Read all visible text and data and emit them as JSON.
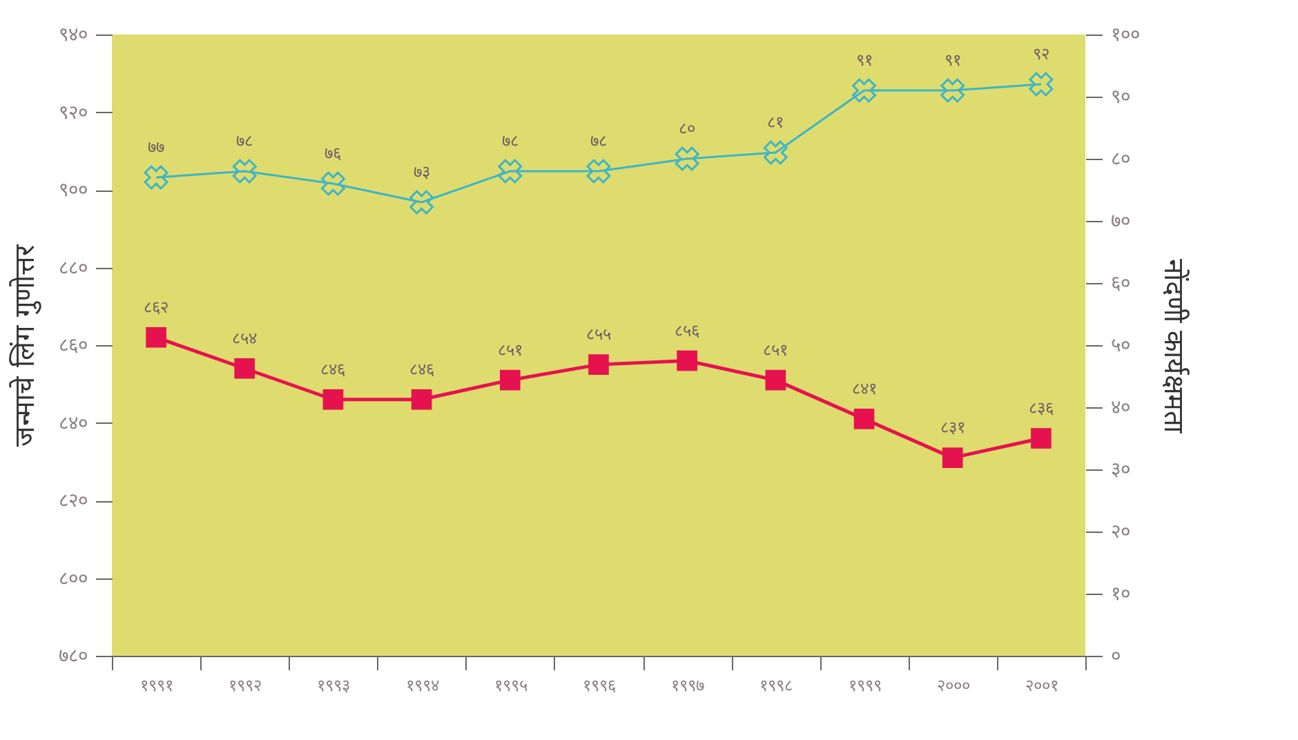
{
  "chart_data": {
    "type": "line",
    "ylabel": "जन्माचे लिंग गुणोत्तर",
    "y2label": "नोंदणी कार्यक्षमता",
    "categories": [
      "१९९१",
      "१९९२",
      "१९९३",
      "१९९४",
      "१९९५",
      "१९९६",
      "१९९७",
      "१९९८",
      "१९९९",
      "२०००",
      "२००१"
    ],
    "series": [
      {
        "color": "#e5124f",
        "marker": "square",
        "values": [
          862,
          854,
          846,
          846,
          851,
          855,
          856,
          851,
          841,
          831,
          836
        ],
        "value_labels": [
          "८६२",
          "८५४",
          "८४६",
          "८४६",
          "८५१",
          "८५५",
          "८५६",
          "८५१",
          "८४१",
          "८३१",
          "८३६"
        ]
      },
      {
        "color": "#3db5c6",
        "marker": "cross",
        "axis": "y2",
        "values": [
          77,
          78,
          76,
          73,
          78,
          78,
          80,
          81,
          91,
          91,
          92
        ],
        "value_labels": [
          "७७",
          "७८",
          "७६",
          "७३",
          "७८",
          "७८",
          "८०",
          "८१",
          "९१",
          "९१",
          "९२"
        ]
      }
    ],
    "ylim": [
      780,
      940
    ],
    "yticks": [
      {
        "value": 780,
        "label": "७८०"
      },
      {
        "value": 800,
        "label": "८००"
      },
      {
        "value": 820,
        "label": "८२०"
      },
      {
        "value": 840,
        "label": "८४०"
      },
      {
        "value": 860,
        "label": "८६०"
      },
      {
        "value": 880,
        "label": "८८०"
      },
      {
        "value": 900,
        "label": "९००"
      },
      {
        "value": 920,
        "label": "९२०"
      },
      {
        "value": 940,
        "label": "९४०"
      }
    ],
    "y2lim": [
      0,
      100
    ],
    "y2ticks": [
      {
        "value": 0,
        "label": "०"
      },
      {
        "value": 10,
        "label": "१०"
      },
      {
        "value": 20,
        "label": "२०"
      },
      {
        "value": 30,
        "label": "३०"
      },
      {
        "value": 40,
        "label": "४०"
      },
      {
        "value": 50,
        "label": "५०"
      },
      {
        "value": 60,
        "label": "६०"
      },
      {
        "value": 70,
        "label": "७०"
      },
      {
        "value": 80,
        "label": "८०"
      },
      {
        "value": 90,
        "label": "९०"
      },
      {
        "value": 100,
        "label": "१००"
      }
    ],
    "grid": false
  }
}
